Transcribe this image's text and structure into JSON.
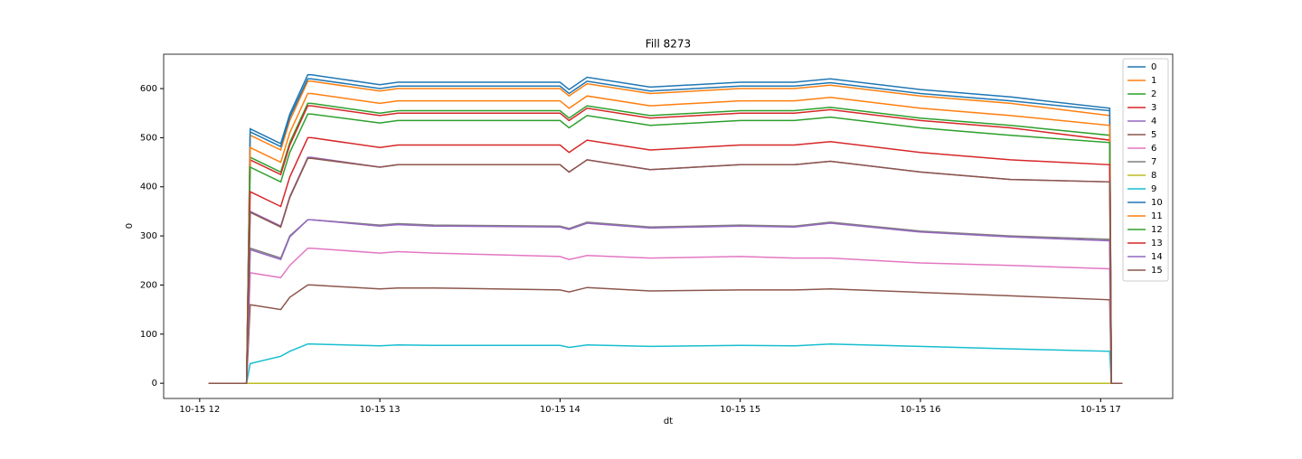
{
  "chart_data": {
    "type": "line",
    "title": "Fill 8273",
    "x_label": "dt",
    "y_label": "0",
    "x": [
      12.05,
      12.26,
      12.28,
      12.45,
      12.5,
      12.6,
      12.62,
      13.0,
      13.1,
      13.3,
      14.0,
      14.05,
      14.15,
      14.5,
      15.0,
      15.3,
      15.5,
      16.0,
      16.5,
      17.05,
      17.06,
      17.12
    ],
    "xlim": [
      11.8,
      17.4
    ],
    "xticks": [
      {
        "value": 12,
        "label": "10-15 12"
      },
      {
        "value": 13,
        "label": "10-15 13"
      },
      {
        "value": 14,
        "label": "10-15 14"
      },
      {
        "value": 15,
        "label": "10-15 15"
      },
      {
        "value": 16,
        "label": "10-15 16"
      },
      {
        "value": 17,
        "label": "10-15 17"
      }
    ],
    "ylim": [
      -31,
      670
    ],
    "yticks": [
      0,
      100,
      200,
      300,
      400,
      500,
      600
    ],
    "legend": "upper right",
    "series": [
      {
        "name": "0",
        "color": "#1f77b4",
        "values": [
          0,
          0,
          518,
          488,
          548,
          628,
          628,
          608,
          613,
          613,
          613,
          598,
          623,
          603,
          613,
          613,
          620,
          598,
          583,
          560,
          0,
          0
        ]
      },
      {
        "name": "1",
        "color": "#ff7f0e",
        "values": [
          0,
          0,
          505,
          475,
          535,
          615,
          615,
          595,
          600,
          600,
          600,
          585,
          610,
          590,
          600,
          600,
          607,
          585,
          570,
          545,
          0,
          0
        ]
      },
      {
        "name": "2",
        "color": "#2ca02c",
        "values": [
          0,
          0,
          460,
          430,
          490,
          570,
          570,
          550,
          555,
          555,
          555,
          540,
          565,
          545,
          555,
          555,
          562,
          540,
          525,
          505,
          0,
          0
        ]
      },
      {
        "name": "3",
        "color": "#d62728",
        "values": [
          0,
          0,
          455,
          425,
          485,
          565,
          565,
          545,
          550,
          550,
          550,
          535,
          560,
          540,
          550,
          550,
          557,
          535,
          520,
          495,
          0,
          0
        ]
      },
      {
        "name": "4",
        "color": "#9467bd",
        "values": [
          0,
          0,
          350,
          320,
          380,
          460,
          460,
          440,
          445,
          445,
          445,
          430,
          455,
          435,
          445,
          445,
          452,
          430,
          415,
          410,
          0,
          0
        ]
      },
      {
        "name": "5",
        "color": "#8c564b",
        "values": [
          0,
          0,
          160,
          150,
          175,
          200,
          200,
          192,
          194,
          194,
          190,
          186,
          195,
          188,
          190,
          190,
          192,
          185,
          178,
          170,
          0,
          0
        ]
      },
      {
        "name": "6",
        "color": "#e377c2",
        "values": [
          0,
          0,
          225,
          215,
          240,
          275,
          275,
          265,
          268,
          265,
          258,
          252,
          260,
          255,
          258,
          255,
          255,
          245,
          240,
          233,
          0,
          0
        ]
      },
      {
        "name": "7",
        "color": "#7f7f7f",
        "values": [
          0,
          0,
          275,
          255,
          300,
          333,
          333,
          322,
          325,
          322,
          320,
          315,
          328,
          318,
          322,
          320,
          328,
          310,
          300,
          293,
          0,
          0
        ]
      },
      {
        "name": "8",
        "color": "#bcbd22",
        "values": [
          0,
          0,
          0,
          0,
          0,
          0,
          0,
          0,
          0,
          0,
          0,
          0,
          0,
          0,
          0,
          0,
          0,
          0,
          0,
          0,
          0,
          0
        ]
      },
      {
        "name": "9",
        "color": "#17becf",
        "values": [
          0,
          0,
          40,
          55,
          65,
          80,
          80,
          76,
          78,
          77,
          77,
          73,
          78,
          75,
          77,
          76,
          80,
          75,
          70,
          65,
          0,
          0
        ]
      },
      {
        "name": "10",
        "color": "#1f77b4",
        "values": [
          0,
          0,
          512,
          482,
          542,
          620,
          620,
          600,
          605,
          605,
          605,
          590,
          615,
          595,
          605,
          605,
          612,
          590,
          575,
          555,
          0,
          0
        ]
      },
      {
        "name": "11",
        "color": "#ff7f0e",
        "values": [
          0,
          0,
          480,
          450,
          510,
          590,
          590,
          570,
          575,
          575,
          575,
          560,
          585,
          565,
          575,
          575,
          582,
          560,
          545,
          525,
          0,
          0
        ]
      },
      {
        "name": "12",
        "color": "#2ca02c",
        "values": [
          0,
          0,
          440,
          410,
          470,
          548,
          548,
          530,
          535,
          535,
          535,
          520,
          545,
          525,
          535,
          535,
          542,
          520,
          505,
          490,
          0,
          0
        ]
      },
      {
        "name": "13",
        "color": "#d62728",
        "values": [
          0,
          0,
          390,
          360,
          420,
          500,
          500,
          480,
          485,
          485,
          485,
          470,
          495,
          475,
          485,
          485,
          492,
          470,
          455,
          445,
          0,
          0
        ]
      },
      {
        "name": "14",
        "color": "#9467bd",
        "values": [
          0,
          0,
          272,
          252,
          298,
          333,
          333,
          320,
          323,
          320,
          318,
          313,
          326,
          316,
          320,
          318,
          326,
          308,
          298,
          290,
          0,
          0
        ]
      },
      {
        "name": "15",
        "color": "#8c564b",
        "values": [
          0,
          0,
          348,
          318,
          378,
          458,
          458,
          440,
          445,
          445,
          445,
          430,
          455,
          435,
          445,
          445,
          452,
          430,
          415,
          410,
          0,
          0
        ]
      }
    ]
  }
}
